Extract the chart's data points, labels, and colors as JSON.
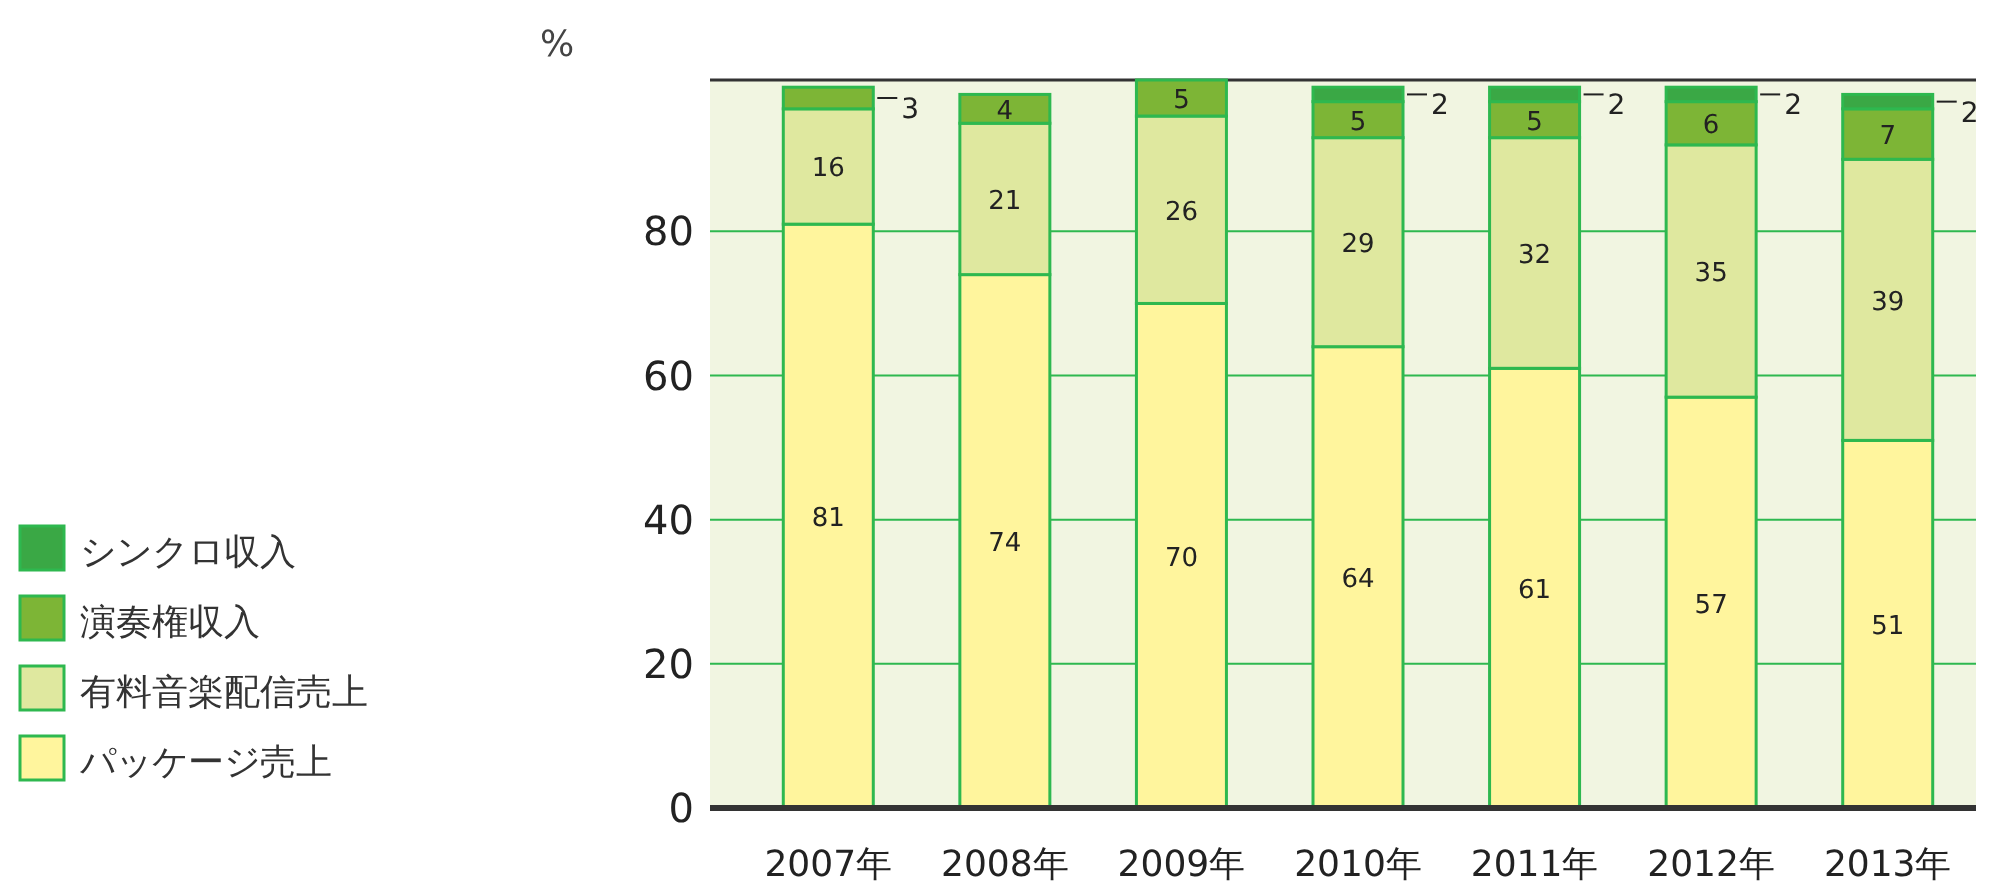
{
  "chart_data": {
    "type": "bar",
    "stacked": true,
    "ylabel": "%",
    "categories": [
      "2007年",
      "2008年",
      "2009年",
      "2010年",
      "2011年",
      "2012年",
      "2013年"
    ],
    "series": [
      {
        "name": "パッケージ売上",
        "color": "#fff59d",
        "values": [
          81,
          74,
          70,
          64,
          61,
          57,
          51
        ]
      },
      {
        "name": "有料音楽配信売上",
        "color": "#dfe89f",
        "values": [
          16,
          21,
          26,
          29,
          32,
          35,
          39
        ]
      },
      {
        "name": "演奏権収入",
        "color": "#7db536",
        "values": [
          3,
          4,
          5,
          5,
          5,
          6,
          7
        ]
      },
      {
        "name": "シンクロ収入",
        "color": "#3aa845",
        "values": [
          null,
          null,
          null,
          2,
          2,
          2,
          2
        ]
      }
    ],
    "ylim": [
      0,
      101
    ],
    "yticks": [
      0,
      20,
      40,
      60,
      80
    ],
    "grid": "y",
    "data_labels": true,
    "legend": "left"
  }
}
